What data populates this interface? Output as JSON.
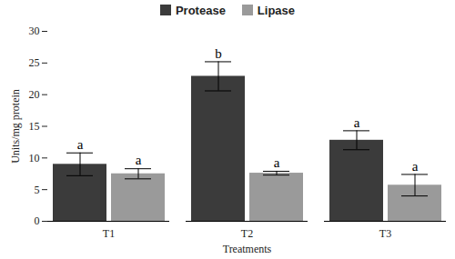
{
  "chart_data": {
    "type": "bar",
    "x_label": "Treatments",
    "y_label": "Units/mg protein",
    "categories": [
      "T1",
      "T2",
      "T3"
    ],
    "series": [
      {
        "name": "Protease",
        "color": "#3b3b3b",
        "values": [
          9.0,
          22.9,
          12.8
        ],
        "errors": [
          1.8,
          2.3,
          1.5
        ],
        "letters": [
          "a",
          "b",
          "a"
        ]
      },
      {
        "name": "Lipase",
        "color": "#9a9a9a",
        "values": [
          7.5,
          7.6,
          5.7
        ],
        "errors": [
          0.8,
          0.3,
          1.7
        ],
        "letters": [
          "a",
          "a",
          "a"
        ]
      }
    ],
    "ylim": [
      0,
      30
    ],
    "yticks": [
      0,
      5,
      10,
      15,
      20,
      25,
      30
    ],
    "grid": false,
    "legend": "top"
  }
}
